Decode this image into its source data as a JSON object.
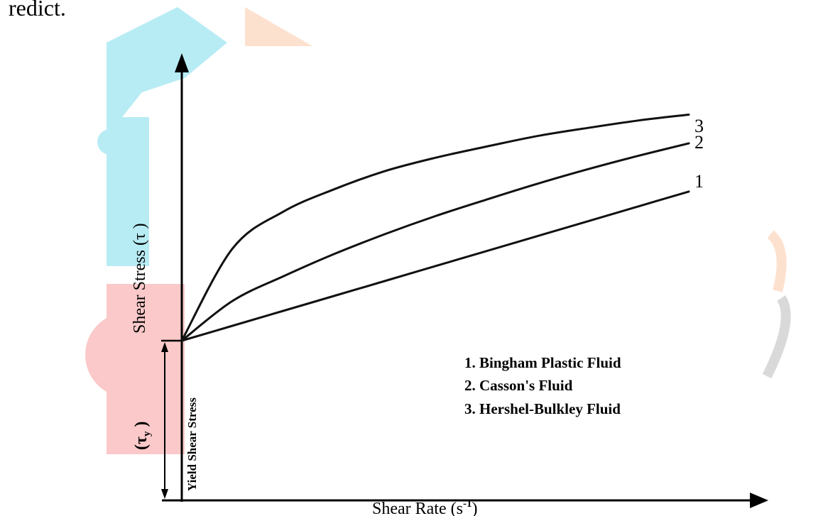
{
  "page": {
    "top_text": "redict."
  },
  "watermark": {
    "colors": {
      "cyan": "#b8ecf5",
      "orange": "#fde1cf",
      "red": "#fbc9c9",
      "gray": "#d9d9d9"
    }
  },
  "chart_data": {
    "type": "line",
    "title": "",
    "xlabel": "Shear Rate (s",
    "xlabel_sup": "-1",
    "xlabel_close": ")",
    "ylabel": "Shear Stress (τ )",
    "x": [
      0,
      1,
      2,
      3,
      4,
      5,
      6,
      7,
      8,
      9,
      10
    ],
    "series": [
      {
        "id": "1",
        "curve_label": "1",
        "values": [
          0,
          1.02,
          2.04,
          3.06,
          4.08,
          5.1,
          6.12,
          7.14,
          8.16,
          9.18,
          10.2
        ]
      },
      {
        "id": "2",
        "curve_label": "2",
        "values": [
          0,
          2.72,
          4.4,
          5.92,
          7.28,
          8.52,
          9.64,
          10.72,
          11.72,
          12.64,
          13.5
        ]
      },
      {
        "id": "3",
        "curve_label": "3",
        "values": [
          0,
          6.3,
          8.82,
          10.35,
          11.59,
          12.51,
          13.27,
          13.99,
          14.55,
          15.06,
          15.46
        ]
      }
    ],
    "legend": [
      "1. Bingham Plastic  Fluid",
      "2. Casson's Fluid",
      "3. Hershel-Bulkley Fluid"
    ],
    "annotations": {
      "yield_label": "Yield Shear Stress",
      "tau_y": "(τ",
      "tau_y_sub": "y",
      "tau_y_close": " )"
    },
    "ylim": [
      -5.8,
      19
    ],
    "xlim": [
      0,
      10
    ],
    "axes_color": "#000000",
    "line_color": "#111111",
    "grid": false
  }
}
